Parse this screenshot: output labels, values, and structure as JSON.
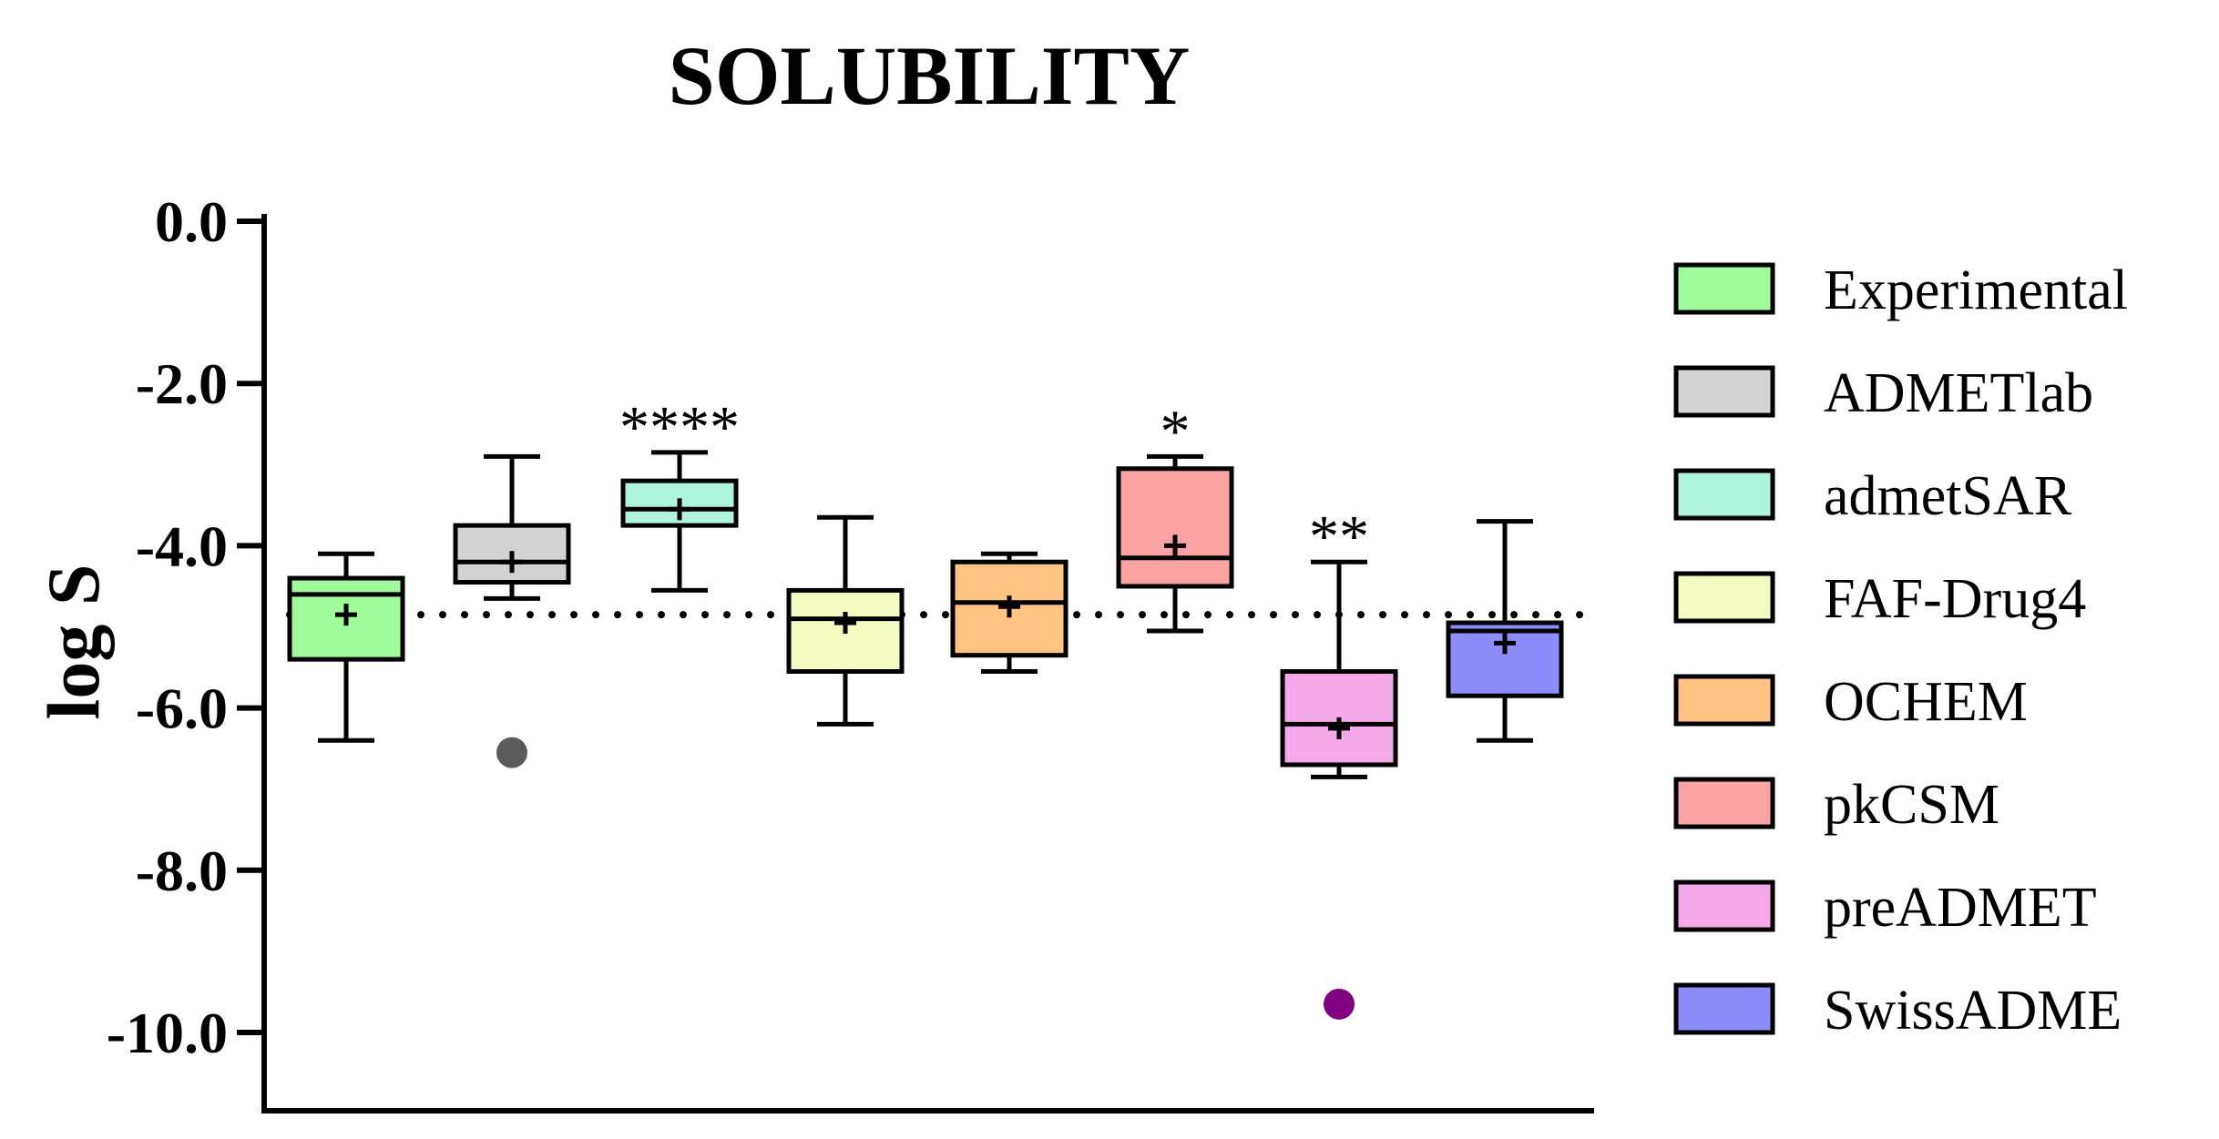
{
  "chart_data": {
    "type": "box",
    "title": "SOLUBILITY",
    "ylabel": "log S",
    "xlabel": "",
    "ylim": [
      -11.0,
      0.0
    ],
    "yticks": [
      0.0,
      -2.0,
      -4.0,
      -6.0,
      -8.0,
      -10.0
    ],
    "ytick_labels": [
      "0.0",
      "-2.0",
      "-4.0",
      "-6.0",
      "-8.0",
      "-10.0"
    ],
    "reference_line": {
      "y": -4.85,
      "style": "dotted"
    },
    "legend_position": "right",
    "series": [
      {
        "name": "Experimental",
        "color": "#9ffb9a",
        "whisker_low": -6.4,
        "q1": -5.4,
        "median": -4.6,
        "q3": -4.4,
        "whisker_high": -4.1,
        "mean": -4.85,
        "outliers": [],
        "significance": ""
      },
      {
        "name": "ADMETlab",
        "color": "#d3d3d3",
        "whisker_low": -4.65,
        "q1": -4.45,
        "median": -4.2,
        "q3": -3.75,
        "whisker_high": -2.9,
        "mean": -4.2,
        "outliers": [
          -6.55
        ],
        "outlier_color": "#5a5a5a",
        "significance": ""
      },
      {
        "name": "admetSAR",
        "color": "#aff5dd",
        "whisker_low": -4.55,
        "q1": -3.75,
        "median": -3.55,
        "q3": -3.2,
        "whisker_high": -2.85,
        "mean": -3.55,
        "outliers": [],
        "significance": "****"
      },
      {
        "name": "FAF-Drug4",
        "color": "#f4fbc0",
        "whisker_low": -6.2,
        "q1": -5.55,
        "median": -4.9,
        "q3": -4.55,
        "whisker_high": -3.65,
        "mean": -4.95,
        "outliers": [],
        "significance": ""
      },
      {
        "name": "OCHEM",
        "color": "#ffc384",
        "whisker_low": -5.55,
        "q1": -5.35,
        "median": -4.7,
        "q3": -4.2,
        "whisker_high": -4.1,
        "mean": -4.75,
        "outliers": [],
        "significance": ""
      },
      {
        "name": "pkCSM",
        "color": "#fba3a2",
        "whisker_low": -5.05,
        "q1": -4.5,
        "median": -4.15,
        "q3": -3.05,
        "whisker_high": -2.9,
        "mean": -4.0,
        "outliers": [],
        "significance": "*"
      },
      {
        "name": "preADMET",
        "color": "#f5a9e8",
        "whisker_low": -6.85,
        "q1": -6.7,
        "median": -6.2,
        "q3": -5.55,
        "whisker_high": -4.2,
        "mean": -6.25,
        "outliers": [
          -9.65
        ],
        "outlier_color": "#800080",
        "significance": "**"
      },
      {
        "name": "SwissADME",
        "color": "#8c8cfa",
        "whisker_low": -6.4,
        "q1": -5.85,
        "median": -5.05,
        "q3": -4.95,
        "whisker_high": -3.7,
        "mean": -5.2,
        "outliers": [],
        "significance": ""
      }
    ]
  }
}
